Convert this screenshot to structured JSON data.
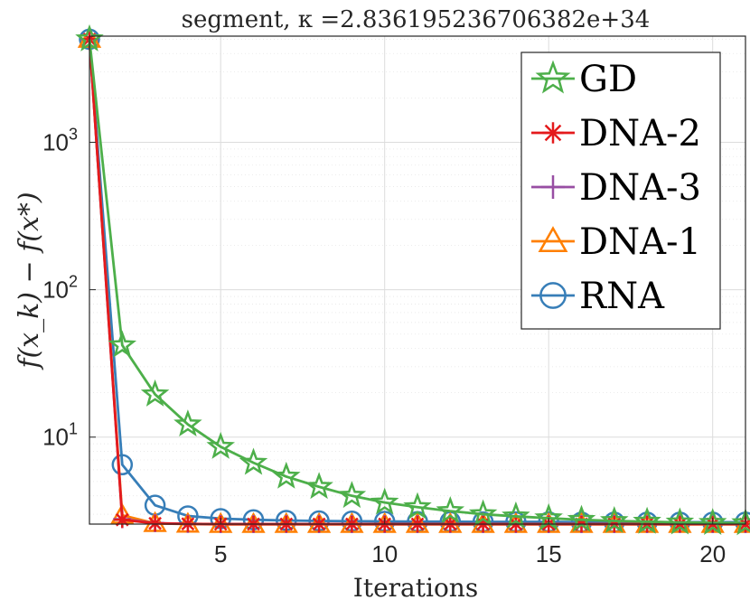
{
  "chart_data": {
    "type": "line",
    "title": "segment, κ =2.836195236706382e+34",
    "xlabel": "Iterations",
    "ylabel": "f(x_k) − f(x*)",
    "yscale": "log",
    "xlim": [
      1,
      21
    ],
    "ylim_log10": [
      0.41,
      3.72
    ],
    "x_ticks": [
      5,
      10,
      15,
      20
    ],
    "y_ticks": [
      {
        "exp": 1,
        "base": "10",
        "sup": "1"
      },
      {
        "exp": 2,
        "base": "10",
        "sup": "2"
      },
      {
        "exp": 3,
        "base": "10",
        "sup": "3"
      }
    ],
    "grid": true,
    "legend_position": "top-right",
    "x": [
      1,
      2,
      3,
      4,
      5,
      6,
      7,
      8,
      9,
      10,
      11,
      12,
      13,
      14,
      15,
      16,
      17,
      18,
      19,
      20,
      21
    ],
    "series": [
      {
        "name": "GD",
        "color": "#4daf4a",
        "marker": "star",
        "values": [
          5000,
          42,
          19.5,
          12.2,
          8.6,
          6.7,
          5.4,
          4.6,
          4.0,
          3.6,
          3.35,
          3.15,
          3.0,
          2.9,
          2.82,
          2.75,
          2.7,
          2.67,
          2.64,
          2.62,
          2.61
        ]
      },
      {
        "name": "DNA-2",
        "color": "#e41a1c",
        "marker": "asterisk",
        "values": [
          5000,
          2.75,
          2.6,
          2.58,
          2.57,
          2.57,
          2.57,
          2.57,
          2.57,
          2.57,
          2.57,
          2.57,
          2.57,
          2.57,
          2.57,
          2.57,
          2.57,
          2.57,
          2.57,
          2.57,
          2.57
        ]
      },
      {
        "name": "DNA-3",
        "color": "#984ea3",
        "marker": "plus",
        "values": [
          5000,
          2.78,
          2.61,
          2.58,
          2.57,
          2.57,
          2.57,
          2.57,
          2.57,
          2.57,
          2.57,
          2.57,
          2.57,
          2.57,
          2.57,
          2.57,
          2.57,
          2.57,
          2.57,
          2.57,
          2.57
        ]
      },
      {
        "name": "DNA-1",
        "color": "#ff7f00",
        "marker": "triangle",
        "values": [
          5000,
          2.95,
          2.6,
          2.57,
          2.56,
          2.56,
          2.56,
          2.56,
          2.56,
          2.56,
          2.56,
          2.56,
          2.56,
          2.56,
          2.56,
          2.56,
          2.56,
          2.56,
          2.56,
          2.56,
          2.56
        ]
      },
      {
        "name": "RNA",
        "color": "#377eb8",
        "marker": "circle",
        "values": [
          5000,
          6.5,
          3.45,
          2.92,
          2.8,
          2.75,
          2.72,
          2.7,
          2.69,
          2.68,
          2.67,
          2.67,
          2.66,
          2.66,
          2.66,
          2.65,
          2.65,
          2.65,
          2.65,
          2.65,
          2.65
        ]
      }
    ]
  }
}
